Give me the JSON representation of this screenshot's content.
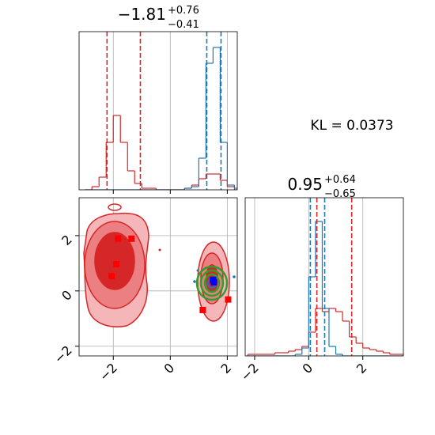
{
  "chart_data": [
    {
      "type": "histogram",
      "title": {
        "main": "−1.81",
        "upper": "+0.76",
        "lower": "−0.41"
      },
      "bins": [
        -3.0,
        -2.75,
        -2.5,
        -2.25,
        -2.0,
        -1.75,
        -1.5,
        -1.25,
        -1.0,
        -0.75,
        -0.5,
        -0.25,
        0.0,
        0.25,
        0.5,
        0.75,
        1.0,
        1.25,
        1.5,
        1.75,
        2.0,
        2.25,
        2.5
      ],
      "series": [
        {
          "color": "#d62728",
          "values": [
            0,
            0.02,
            0.08,
            0.3,
            0.47,
            0.3,
            0.12,
            0.04,
            0.01,
            0.01,
            0,
            0,
            0,
            0,
            0.01,
            0.03,
            0.07,
            0.1,
            0.1,
            0.06,
            0.02,
            0.01
          ]
        },
        {
          "color": "#1f77b4",
          "values": [
            0,
            0,
            0,
            0,
            0,
            0,
            0,
            0,
            0,
            0,
            0,
            0,
            0,
            0,
            0.01,
            0.02,
            0.2,
            0.8,
            0.9,
            0.3,
            0.03,
            0
          ]
        }
      ],
      "quantiles": [
        {
          "color": "#d62728",
          "values": [
            -2.22,
            -1.05
          ]
        },
        {
          "color": "#1f77b4",
          "values": [
            1.28,
            1.78
          ]
        }
      ],
      "xlim": [
        -3.2,
        2.35
      ],
      "xticks": [
        {
          "value": -2,
          "label": "−2"
        },
        0,
        2
      ],
      "show_xtick_labels": false,
      "ylim": [
        0,
        1
      ],
      "grid": true
    },
    {
      "type": "contour",
      "annotation": "KL = 0.0373",
      "series": [
        {
          "color": "#ff0000",
          "x": [
            -1.83,
            -1.36,
            -1.89,
            -2.06,
            1.14,
            2.03,
            1.5
          ],
          "values": [
            1.89,
            1.89,
            0.97,
            0.54,
            -0.69,
            -0.31,
            0.37
          ]
        },
        {
          "color": "#0000ff",
          "x": [
            1.53,
            1.5
          ],
          "values": [
            0.31,
            0.4
          ]
        }
      ],
      "xlim": [
        -3.2,
        2.35
      ],
      "xticks": [
        {
          "value": -2,
          "label": "−2"
        },
        0,
        2
      ],
      "ylim": [
        -2.35,
        3.37
      ],
      "yticks": [
        {
          "value": -2,
          "label": "−2"
        },
        0,
        2
      ],
      "grid": true
    },
    {
      "type": "histogram",
      "title": {
        "main": "0.95",
        "upper": "+0.64",
        "lower": "−0.65"
      },
      "bins": [
        -2.25,
        -2.0,
        -1.75,
        -1.5,
        -1.25,
        -1.0,
        -0.75,
        -0.5,
        -0.25,
        0.0,
        0.25,
        0.5,
        0.75,
        1.0,
        1.25,
        1.5,
        1.75,
        2.0,
        2.25,
        2.5,
        2.75,
        3.0,
        3.25,
        3.5
      ],
      "series": [
        {
          "color": "#d62728",
          "values": [
            0.01,
            0.01,
            0.01,
            0.01,
            0.02,
            0.02,
            0.03,
            0.04,
            0.06,
            0.15,
            0.3,
            0.28,
            0.3,
            0.28,
            0.22,
            0.12,
            0.08,
            0.05,
            0.04,
            0.03,
            0.02,
            0.01,
            0.01
          ]
        },
        {
          "color": "#1f77b4",
          "values": [
            0,
            0,
            0,
            0,
            0,
            0,
            0,
            0.01,
            0.05,
            0.5,
            0.85,
            0.3,
            0.06,
            0.01,
            0,
            0,
            0,
            0,
            0,
            0,
            0,
            0,
            0
          ]
        }
      ],
      "quantiles": [
        {
          "color": "#d62728",
          "values": [
            0.3,
            1.59
          ]
        },
        {
          "color": "#1f77b4",
          "values": [
            0.06,
            0.59
          ]
        }
      ],
      "xlim": [
        -2.35,
        3.5
      ],
      "xticks": [
        {
          "value": -2,
          "label": "−2"
        },
        0,
        2
      ],
      "ylim": [
        0,
        1
      ],
      "grid": true
    }
  ]
}
